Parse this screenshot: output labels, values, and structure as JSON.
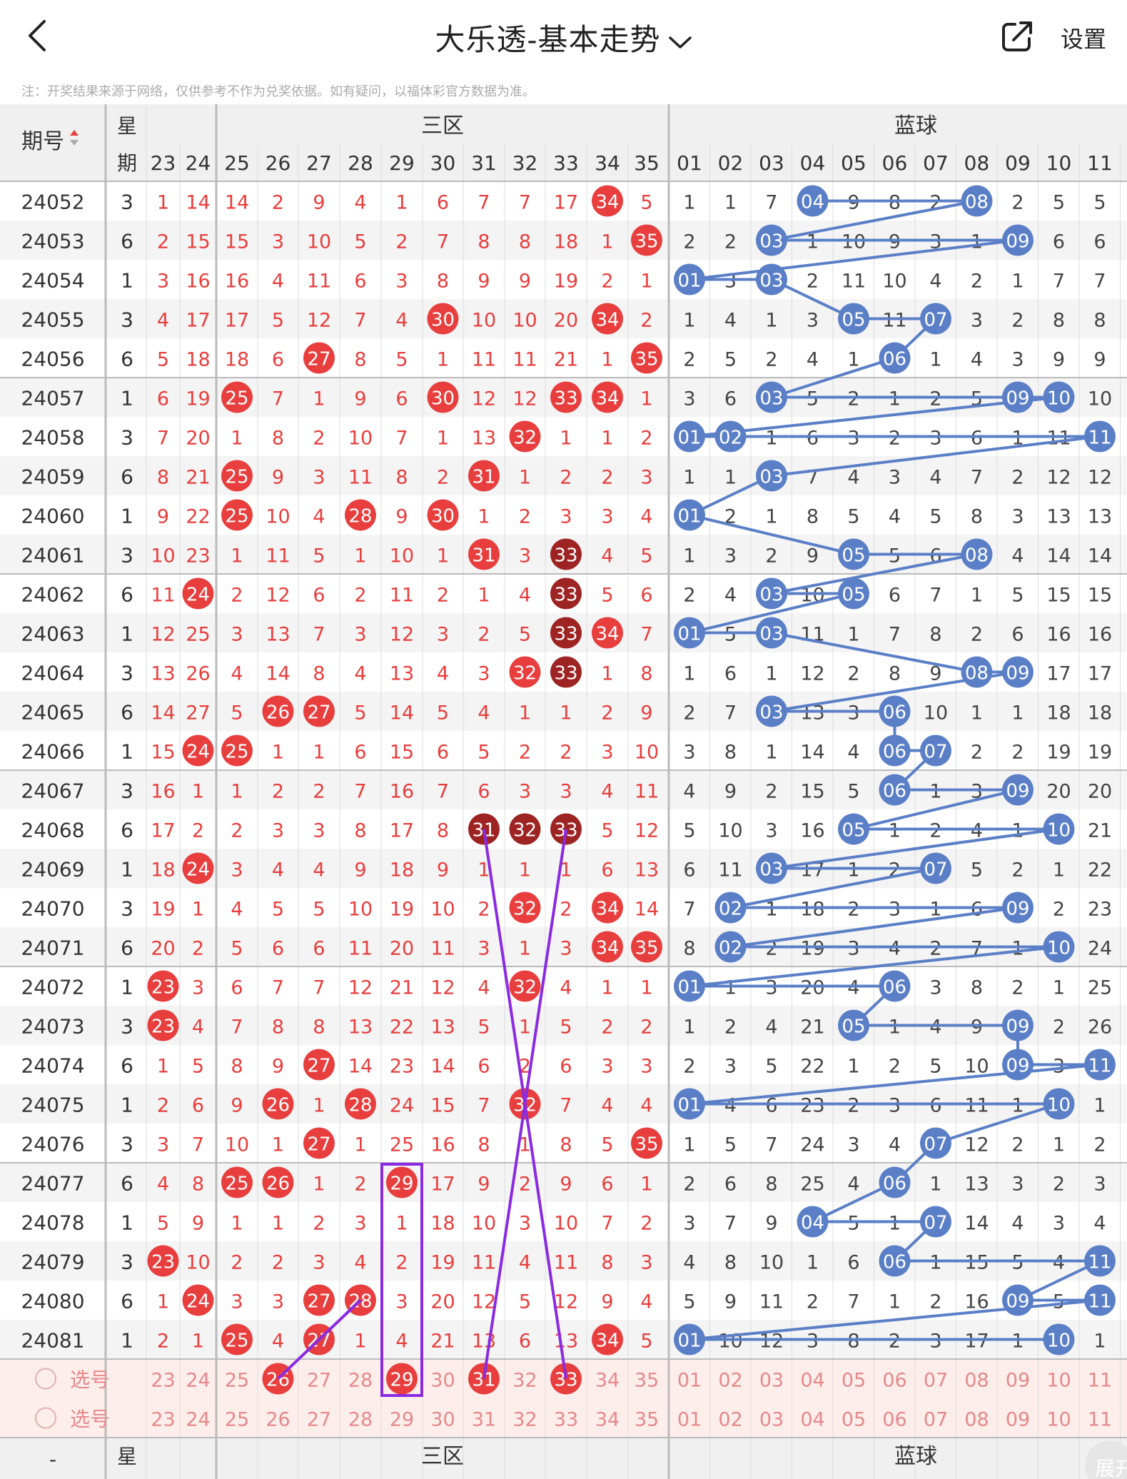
{
  "header": {
    "title": "大乐透-基本走势",
    "settings_label": "设置",
    "back_icon": "chevron-left-icon",
    "share_icon": "share-external-icon",
    "title_menu_icon": "chevron-down-icon"
  },
  "note": "注：开奖结果来源于网络，仅供参考不作为兑奖依据。如有疑问，以福体彩官方数据为准。",
  "table": {
    "col_issue": "期号",
    "col_weekday_top": "星",
    "col_weekday_bottom": "期",
    "sort_icon": "sort-up-down-icon",
    "front_zone_label": "三区",
    "back_zone_label": "蓝球",
    "select_label": "选号",
    "footer_dash": "-",
    "front_numbers": [
      "23",
      "24",
      "25",
      "26",
      "27",
      "28",
      "29",
      "30",
      "31",
      "32",
      "33",
      "34",
      "35"
    ],
    "back_numbers": [
      "01",
      "02",
      "03",
      "04",
      "05",
      "06",
      "07",
      "08",
      "09",
      "10",
      "11"
    ],
    "front_selected": [
      "26",
      "29",
      "31",
      "33"
    ],
    "rows": [
      {
        "issue": "24052",
        "wk": "3",
        "f": [
          "1",
          "14",
          "14",
          "2",
          "9",
          "4",
          "1",
          "6",
          "7",
          "7",
          "17",
          "34",
          "5"
        ],
        "b": [
          "1",
          "1",
          "7",
          "04",
          "9",
          "8",
          "2",
          "08",
          "2",
          "5",
          "5"
        ]
      },
      {
        "issue": "24053",
        "wk": "6",
        "f": [
          "2",
          "15",
          "15",
          "3",
          "10",
          "5",
          "2",
          "7",
          "8",
          "8",
          "18",
          "1",
          "35"
        ],
        "b": [
          "2",
          "2",
          "03",
          "1",
          "10",
          "9",
          "3",
          "1",
          "09",
          "6",
          "6"
        ]
      },
      {
        "issue": "24054",
        "wk": "1",
        "f": [
          "3",
          "16",
          "16",
          "4",
          "11",
          "6",
          "3",
          "8",
          "9",
          "9",
          "19",
          "2",
          "1"
        ],
        "b": [
          "01",
          "3",
          "03",
          "2",
          "11",
          "10",
          "4",
          "2",
          "1",
          "7",
          "7"
        ]
      },
      {
        "issue": "24055",
        "wk": "3",
        "f": [
          "4",
          "17",
          "17",
          "5",
          "12",
          "7",
          "4",
          "30",
          "10",
          "10",
          "20",
          "34",
          "2"
        ],
        "b": [
          "1",
          "4",
          "1",
          "3",
          "05",
          "11",
          "07",
          "3",
          "2",
          "8",
          "8"
        ]
      },
      {
        "issue": "24056",
        "wk": "6",
        "f": [
          "5",
          "18",
          "18",
          "6",
          "27",
          "8",
          "5",
          "1",
          "11",
          "11",
          "21",
          "1",
          "35"
        ],
        "b": [
          "2",
          "5",
          "2",
          "4",
          "1",
          "06",
          "1",
          "4",
          "3",
          "9",
          "9"
        ]
      },
      {
        "issue": "24057",
        "wk": "1",
        "f": [
          "6",
          "19",
          "25",
          "7",
          "1",
          "9",
          "6",
          "30",
          "12",
          "12",
          "33",
          "34",
          "1"
        ],
        "b": [
          "3",
          "6",
          "03",
          "5",
          "2",
          "1",
          "2",
          "5",
          "09",
          "10",
          "10"
        ]
      },
      {
        "issue": "24058",
        "wk": "3",
        "f": [
          "7",
          "20",
          "1",
          "8",
          "2",
          "10",
          "7",
          "1",
          "13",
          "32",
          "1",
          "1",
          "2"
        ],
        "b": [
          "01",
          "02",
          "1",
          "6",
          "3",
          "2",
          "3",
          "6",
          "1",
          "11",
          "11"
        ]
      },
      {
        "issue": "24059",
        "wk": "6",
        "f": [
          "8",
          "21",
          "25",
          "9",
          "3",
          "11",
          "8",
          "2",
          "31",
          "1",
          "2",
          "2",
          "3"
        ],
        "b": [
          "1",
          "1",
          "03",
          "7",
          "4",
          "3",
          "4",
          "7",
          "2",
          "12",
          "12"
        ]
      },
      {
        "issue": "24060",
        "wk": "1",
        "f": [
          "9",
          "22",
          "25",
          "10",
          "4",
          "28",
          "9",
          "30",
          "1",
          "2",
          "3",
          "3",
          "4"
        ],
        "b": [
          "01",
          "2",
          "1",
          "8",
          "5",
          "4",
          "5",
          "8",
          "3",
          "13",
          "13"
        ]
      },
      {
        "issue": "24061",
        "wk": "3",
        "f": [
          "10",
          "23",
          "1",
          "11",
          "5",
          "1",
          "10",
          "1",
          "31",
          "3",
          "33",
          "4",
          "5"
        ],
        "b": [
          "1",
          "3",
          "2",
          "9",
          "05",
          "5",
          "6",
          "08",
          "4",
          "14",
          "14"
        ]
      },
      {
        "issue": "24062",
        "wk": "6",
        "f": [
          "11",
          "24",
          "2",
          "12",
          "6",
          "2",
          "11",
          "2",
          "1",
          "4",
          "33",
          "5",
          "6"
        ],
        "b": [
          "2",
          "4",
          "03",
          "10",
          "05",
          "6",
          "7",
          "1",
          "5",
          "15",
          "15"
        ]
      },
      {
        "issue": "24063",
        "wk": "1",
        "f": [
          "12",
          "25",
          "3",
          "13",
          "7",
          "3",
          "12",
          "3",
          "2",
          "5",
          "33",
          "34",
          "7"
        ],
        "b": [
          "01",
          "5",
          "03",
          "11",
          "1",
          "7",
          "8",
          "2",
          "6",
          "16",
          "16"
        ]
      },
      {
        "issue": "24064",
        "wk": "3",
        "f": [
          "13",
          "26",
          "4",
          "14",
          "8",
          "4",
          "13",
          "4",
          "3",
          "32",
          "33",
          "1",
          "8"
        ],
        "b": [
          "1",
          "6",
          "1",
          "12",
          "2",
          "8",
          "9",
          "08",
          "09",
          "17",
          "17"
        ]
      },
      {
        "issue": "24065",
        "wk": "6",
        "f": [
          "14",
          "27",
          "5",
          "26",
          "27",
          "5",
          "14",
          "5",
          "4",
          "1",
          "1",
          "2",
          "9"
        ],
        "b": [
          "2",
          "7",
          "03",
          "13",
          "3",
          "06",
          "10",
          "1",
          "1",
          "18",
          "18"
        ]
      },
      {
        "issue": "24066",
        "wk": "1",
        "f": [
          "15",
          "24",
          "25",
          "1",
          "1",
          "6",
          "15",
          "6",
          "5",
          "2",
          "2",
          "3",
          "10"
        ],
        "b": [
          "3",
          "8",
          "1",
          "14",
          "4",
          "06",
          "07",
          "2",
          "2",
          "19",
          "19"
        ]
      },
      {
        "issue": "24067",
        "wk": "3",
        "f": [
          "16",
          "1",
          "1",
          "2",
          "2",
          "7",
          "16",
          "7",
          "6",
          "3",
          "3",
          "4",
          "11"
        ],
        "b": [
          "4",
          "9",
          "2",
          "15",
          "5",
          "06",
          "1",
          "3",
          "09",
          "20",
          "20"
        ]
      },
      {
        "issue": "24068",
        "wk": "6",
        "f": [
          "17",
          "2",
          "2",
          "3",
          "3",
          "8",
          "17",
          "8",
          "31",
          "32",
          "33",
          "5",
          "12"
        ],
        "b": [
          "5",
          "10",
          "3",
          "16",
          "05",
          "1",
          "2",
          "4",
          "1",
          "10",
          "21"
        ]
      },
      {
        "issue": "24069",
        "wk": "1",
        "f": [
          "18",
          "24",
          "3",
          "4",
          "4",
          "9",
          "18",
          "9",
          "1",
          "1",
          "1",
          "6",
          "13"
        ],
        "b": [
          "6",
          "11",
          "03",
          "17",
          "1",
          "2",
          "07",
          "5",
          "2",
          "1",
          "22"
        ]
      },
      {
        "issue": "24070",
        "wk": "3",
        "f": [
          "19",
          "1",
          "4",
          "5",
          "5",
          "10",
          "19",
          "10",
          "2",
          "32",
          "2",
          "34",
          "14"
        ],
        "b": [
          "7",
          "02",
          "1",
          "18",
          "2",
          "3",
          "1",
          "6",
          "09",
          "2",
          "23"
        ]
      },
      {
        "issue": "24071",
        "wk": "6",
        "f": [
          "20",
          "2",
          "5",
          "6",
          "6",
          "11",
          "20",
          "11",
          "3",
          "1",
          "3",
          "34",
          "35"
        ],
        "b": [
          "8",
          "02",
          "2",
          "19",
          "3",
          "4",
          "2",
          "7",
          "1",
          "10",
          "24"
        ]
      },
      {
        "issue": "24072",
        "wk": "1",
        "f": [
          "23",
          "3",
          "6",
          "7",
          "7",
          "12",
          "21",
          "12",
          "4",
          "32",
          "4",
          "1",
          "1"
        ],
        "b": [
          "01",
          "1",
          "3",
          "20",
          "4",
          "06",
          "3",
          "8",
          "2",
          "1",
          "25"
        ]
      },
      {
        "issue": "24073",
        "wk": "3",
        "f": [
          "23",
          "4",
          "7",
          "8",
          "8",
          "13",
          "22",
          "13",
          "5",
          "1",
          "5",
          "2",
          "2"
        ],
        "b": [
          "1",
          "2",
          "4",
          "21",
          "05",
          "1",
          "4",
          "9",
          "09",
          "2",
          "26"
        ]
      },
      {
        "issue": "24074",
        "wk": "6",
        "f": [
          "1",
          "5",
          "8",
          "9",
          "27",
          "14",
          "23",
          "14",
          "6",
          "2",
          "6",
          "3",
          "3"
        ],
        "b": [
          "2",
          "3",
          "5",
          "22",
          "1",
          "2",
          "5",
          "10",
          "09",
          "3",
          "11"
        ]
      },
      {
        "issue": "24075",
        "wk": "1",
        "f": [
          "2",
          "6",
          "9",
          "26",
          "1",
          "28",
          "24",
          "15",
          "7",
          "32",
          "7",
          "4",
          "4"
        ],
        "b": [
          "01",
          "4",
          "6",
          "23",
          "2",
          "3",
          "6",
          "11",
          "1",
          "10",
          "1"
        ]
      },
      {
        "issue": "24076",
        "wk": "3",
        "f": [
          "3",
          "7",
          "10",
          "1",
          "27",
          "1",
          "25",
          "16",
          "8",
          "1",
          "8",
          "5",
          "35"
        ],
        "b": [
          "1",
          "5",
          "7",
          "24",
          "3",
          "4",
          "07",
          "12",
          "2",
          "1",
          "2"
        ]
      },
      {
        "issue": "24077",
        "wk": "6",
        "f": [
          "4",
          "8",
          "25",
          "26",
          "1",
          "2",
          "29",
          "17",
          "9",
          "2",
          "9",
          "6",
          "1"
        ],
        "b": [
          "2",
          "6",
          "8",
          "25",
          "4",
          "06",
          "1",
          "13",
          "3",
          "2",
          "3"
        ]
      },
      {
        "issue": "24078",
        "wk": "1",
        "f": [
          "5",
          "9",
          "1",
          "1",
          "2",
          "3",
          "1",
          "18",
          "10",
          "3",
          "10",
          "7",
          "2"
        ],
        "b": [
          "3",
          "7",
          "9",
          "04",
          "5",
          "1",
          "07",
          "14",
          "4",
          "3",
          "4"
        ]
      },
      {
        "issue": "24079",
        "wk": "3",
        "f": [
          "23",
          "10",
          "2",
          "2",
          "3",
          "4",
          "2",
          "19",
          "11",
          "4",
          "11",
          "8",
          "3"
        ],
        "b": [
          "4",
          "8",
          "10",
          "1",
          "6",
          "06",
          "1",
          "15",
          "5",
          "4",
          "11"
        ]
      },
      {
        "issue": "24080",
        "wk": "6",
        "f": [
          "1",
          "24",
          "3",
          "3",
          "27",
          "28",
          "3",
          "20",
          "12",
          "5",
          "12",
          "9",
          "4"
        ],
        "b": [
          "5",
          "9",
          "11",
          "2",
          "7",
          "1",
          "2",
          "16",
          "09",
          "5",
          "11"
        ]
      },
      {
        "issue": "24081",
        "wk": "1",
        "f": [
          "2",
          "1",
          "25",
          "4",
          "27",
          "1",
          "4",
          "21",
          "13",
          "6",
          "13",
          "34",
          "5"
        ],
        "b": [
          "01",
          "10",
          "12",
          "3",
          "8",
          "2",
          "3",
          "17",
          "1",
          "10",
          "1"
        ]
      }
    ]
  },
  "expand_label": "展开",
  "colors": {
    "red": "#e83e3e",
    "dark_red": "#9e2323",
    "blue": "#5b7fc7",
    "purple": "#8a2be2",
    "pink": "#e6898a",
    "row_alt": "#f4f4f4",
    "select_bg": "#fdeeec"
  }
}
